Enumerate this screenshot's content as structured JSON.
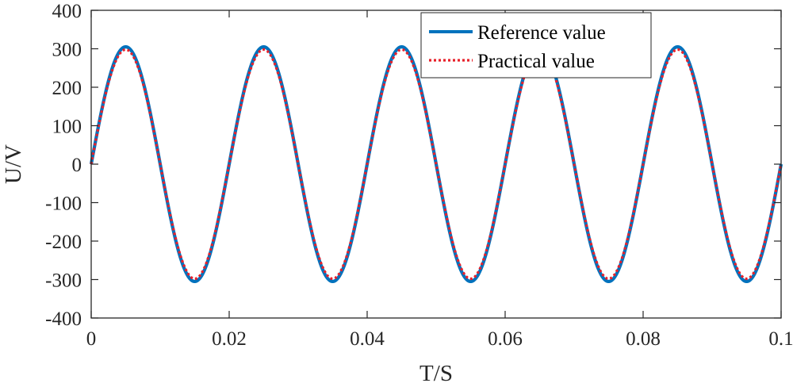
{
  "chart_data": {
    "type": "line",
    "title": "",
    "xlabel": "T/S",
    "ylabel": "U/V",
    "xlim": [
      0,
      0.1
    ],
    "ylim": [
      -400,
      400
    ],
    "x_ticks": [
      0,
      0.02,
      0.04,
      0.06,
      0.08,
      0.1
    ],
    "x_tick_labels": [
      "0",
      "0.02",
      "0.04",
      "0.06",
      "0.08",
      "0.1"
    ],
    "y_ticks": [
      400,
      300,
      200,
      100,
      0,
      -100,
      -200,
      -300,
      -400
    ],
    "y_tick_labels": [
      "400",
      "300",
      "200",
      "100",
      "0",
      "-100",
      "-200",
      "-300",
      "-400"
    ],
    "grid": false,
    "legend_position": "top-right",
    "signal": {
      "form": "sine",
      "frequency_hz": 50,
      "t_start": 0,
      "t_end": 0.1
    },
    "series": [
      {
        "name": "Reference value",
        "amplitude": 305,
        "color": "#0072BD",
        "style": "solid"
      },
      {
        "name": "Practical value",
        "amplitude": 298,
        "color": "#E8202A",
        "style": "dotted"
      }
    ],
    "axis_color": "#262626"
  }
}
